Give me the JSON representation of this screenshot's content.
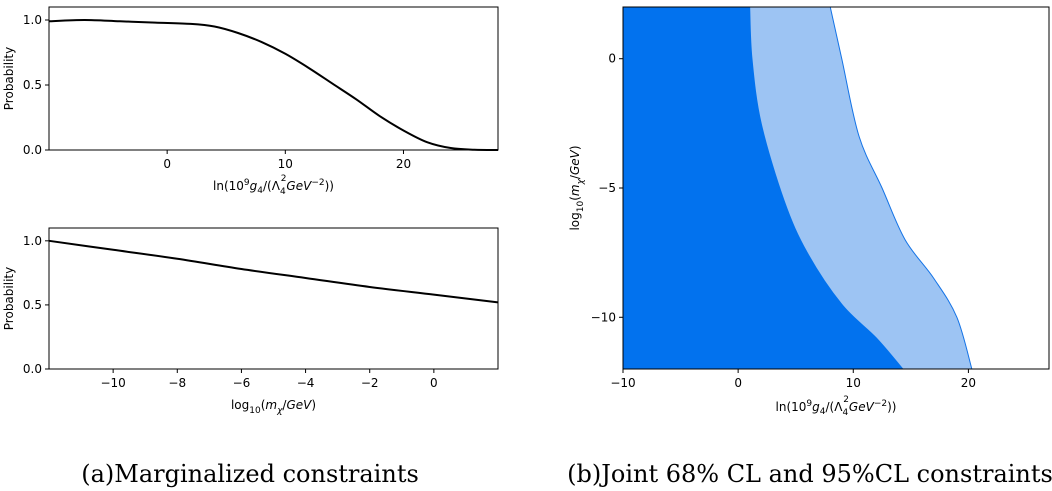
{
  "captions": {
    "a": "(a)Marginalized constraints",
    "b": "(b)Joint 68% CL and 95%CL constraints"
  },
  "chart_data": [
    {
      "id": "a1",
      "type": "line",
      "xlabel": "ln(10^9 g_4/(Λ_4^2 GeV^-2))",
      "ylabel": "Probability",
      "xlim": [
        -10,
        28
      ],
      "ylim": [
        0,
        1.1
      ],
      "xticks": [
        0,
        10,
        20
      ],
      "yticks": [
        0.0,
        0.5,
        1.0
      ],
      "xtick_labels": [
        "0",
        "10",
        "20"
      ],
      "ytick_labels": [
        "0.0",
        "0.5",
        "1.0"
      ],
      "grid": false,
      "series": [
        {
          "color": "#000000",
          "x": [
            -10,
            -7,
            -4,
            -1,
            2,
            4,
            6,
            8,
            10,
            12,
            14,
            16,
            18,
            20,
            22,
            24,
            26,
            28
          ],
          "y": [
            0.99,
            1.0,
            0.99,
            0.98,
            0.97,
            0.95,
            0.9,
            0.83,
            0.74,
            0.63,
            0.51,
            0.39,
            0.26,
            0.15,
            0.06,
            0.015,
            0.002,
            0.0
          ]
        }
      ]
    },
    {
      "id": "a2",
      "type": "line",
      "xlabel": "log10(m_χ/GeV)",
      "ylabel": "Probability",
      "xlim": [
        -12,
        2
      ],
      "ylim": [
        0,
        1.1
      ],
      "xticks": [
        -10,
        -8,
        -6,
        -4,
        -2,
        0
      ],
      "yticks": [
        0.0,
        0.5,
        1.0
      ],
      "xtick_labels": [
        "−10",
        "−8",
        "−6",
        "−4",
        "−2",
        "0"
      ],
      "ytick_labels": [
        "0.0",
        "0.5",
        "1.0"
      ],
      "grid": false,
      "series": [
        {
          "color": "#000000",
          "x": [
            -12,
            -10,
            -8,
            -6,
            -4,
            -2,
            0,
            2
          ],
          "y": [
            1.0,
            0.93,
            0.86,
            0.78,
            0.71,
            0.64,
            0.58,
            0.52
          ]
        }
      ]
    },
    {
      "id": "b",
      "type": "area",
      "xlabel": "ln(10^9 g_4/(Λ_4^2 GeV^-2))",
      "ylabel": "log10(m_χ/GeV)",
      "xlim": [
        -10,
        27
      ],
      "ylim": [
        -12,
        2
      ],
      "xticks": [
        -10,
        0,
        10,
        20
      ],
      "yticks": [
        0,
        -5,
        -10
      ],
      "xtick_labels": [
        "−10",
        "0",
        "10",
        "20"
      ],
      "ytick_labels": [
        "0",
        "−5",
        "−10"
      ],
      "grid": false,
      "regions": [
        {
          "level": "95% CL",
          "color": "#9dc4f3",
          "edge_color": "#1473e6",
          "boundary": [
            [
              8,
              2
            ],
            [
              9,
              0
            ],
            [
              10.5,
              -3
            ],
            [
              12.5,
              -5
            ],
            [
              14.5,
              -7
            ],
            [
              17,
              -8.5
            ],
            [
              19,
              -10
            ],
            [
              20.3,
              -12
            ]
          ]
        },
        {
          "level": "68% CL",
          "color": "#0272ee",
          "edge_color": "#0272ee",
          "boundary": [
            [
              1,
              2
            ],
            [
              1.2,
              0
            ],
            [
              2,
              -2.5
            ],
            [
              4,
              -5.5
            ],
            [
              6,
              -7.5
            ],
            [
              9,
              -9.5
            ],
            [
              12,
              -10.8
            ],
            [
              14.3,
              -12
            ]
          ]
        }
      ]
    }
  ]
}
